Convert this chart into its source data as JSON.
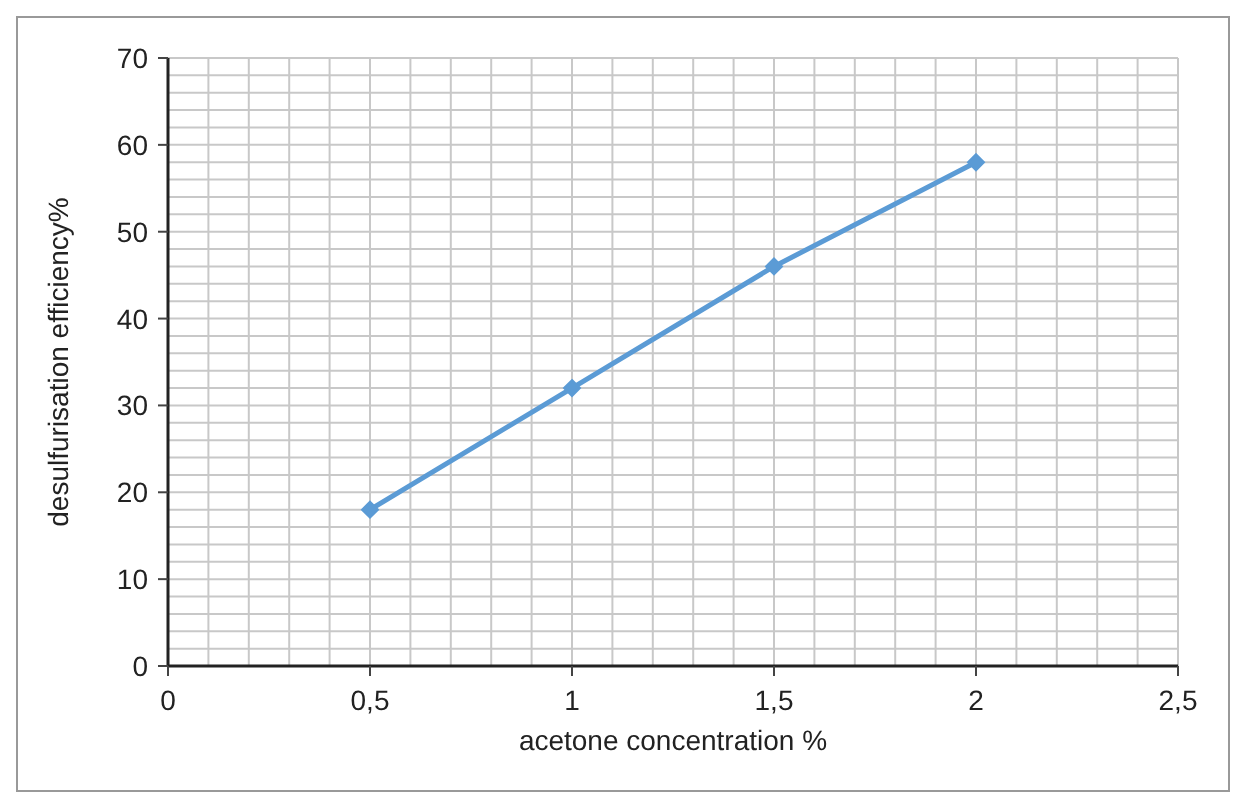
{
  "chart_data": {
    "type": "line",
    "xlabel": "acetone concentration %",
    "ylabel": "desulfurisation efficiency%",
    "x": [
      0.5,
      1,
      1.5,
      2
    ],
    "series": [
      {
        "color": "#5b9bd5",
        "values": [
          18,
          32,
          46,
          58
        ]
      }
    ],
    "xlim": [
      0,
      2.5
    ],
    "xticks": [
      0,
      {
        "value": 0.1,
        "label": null
      },
      {
        "value": 0.2,
        "label": null
      },
      {
        "value": 0.3,
        "label": null
      },
      {
        "value": 0.4,
        "label": null
      },
      {
        "value": 0.5,
        "label": "0,5"
      },
      {
        "value": 0.6,
        "label": null
      },
      {
        "value": 0.7,
        "label": null
      },
      {
        "value": 0.8,
        "label": null
      },
      {
        "value": 0.9,
        "label": null
      },
      1,
      {
        "value": 1.1,
        "label": null
      },
      {
        "value": 1.2,
        "label": null
      },
      {
        "value": 1.3,
        "label": null
      },
      {
        "value": 1.4,
        "label": null
      },
      {
        "value": 1.5,
        "label": "1,5"
      },
      {
        "value": 1.6,
        "label": null
      },
      {
        "value": 1.7,
        "label": null
      },
      {
        "value": 1.8,
        "label": null
      },
      {
        "value": 1.9,
        "label": null
      },
      2,
      {
        "value": 2.1,
        "label": null
      },
      {
        "value": 2.2,
        "label": null
      },
      {
        "value": 2.3,
        "label": null
      },
      {
        "value": 2.4,
        "label": null
      },
      {
        "value": 2.5,
        "label": "2,5"
      }
    ],
    "ylim": [
      0,
      70
    ],
    "yticks": [
      0,
      {
        "value": 2,
        "label": null
      },
      {
        "value": 4,
        "label": null
      },
      {
        "value": 6,
        "label": null
      },
      {
        "value": 8,
        "label": null
      },
      10,
      {
        "value": 12,
        "label": null
      },
      {
        "value": 14,
        "label": null
      },
      {
        "value": 16,
        "label": null
      },
      {
        "value": 18,
        "label": null
      },
      20,
      {
        "value": 22,
        "label": null
      },
      {
        "value": 24,
        "label": null
      },
      {
        "value": 26,
        "label": null
      },
      {
        "value": 28,
        "label": null
      },
      30,
      {
        "value": 32,
        "label": null
      },
      {
        "value": 34,
        "label": null
      },
      {
        "value": 36,
        "label": null
      },
      {
        "value": 38,
        "label": null
      },
      40,
      {
        "value": 42,
        "label": null
      },
      {
        "value": 44,
        "label": null
      },
      {
        "value": 46,
        "label": null
      },
      {
        "value": 48,
        "label": null
      },
      50,
      {
        "value": 52,
        "label": null
      },
      {
        "value": 54,
        "label": null
      },
      {
        "value": 56,
        "label": null
      },
      {
        "value": 58,
        "label": null
      },
      60,
      {
        "value": 62,
        "label": null
      },
      {
        "value": 64,
        "label": null
      },
      {
        "value": 66,
        "label": null
      },
      {
        "value": 68,
        "label": null
      },
      70
    ],
    "grid": true,
    "marker": "diamond",
    "line_style": "solid",
    "legend": false
  }
}
